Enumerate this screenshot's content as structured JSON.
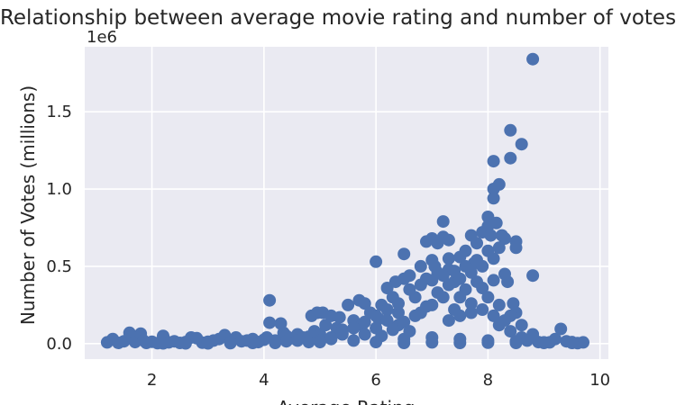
{
  "chart_data": {
    "type": "scatter",
    "title": "Relationship between average movie rating and number of votes",
    "xlabel": "Average Rating",
    "ylabel": "Number of Votes (millions)",
    "y_offset_label": "1e6",
    "xlim": [
      0.8,
      10.15
    ],
    "ylim": [
      -100000,
      1920000
    ],
    "x_ticks": [
      2,
      4,
      6,
      8,
      10
    ],
    "x_tick_labels": [
      "2",
      "4",
      "6",
      "8",
      "10"
    ],
    "y_ticks": [
      0,
      500000,
      1000000,
      1500000
    ],
    "y_tick_labels": [
      "0.0",
      "0.5",
      "1.0",
      "1.5"
    ],
    "grid": true,
    "series_color": "#4c72b0",
    "background": "#eaeaf2",
    "points": [
      [
        1.2,
        8000
      ],
      [
        1.3,
        30000
      ],
      [
        1.4,
        5000
      ],
      [
        1.5,
        15000
      ],
      [
        1.6,
        70000
      ],
      [
        1.65,
        40000
      ],
      [
        1.7,
        10000
      ],
      [
        1.8,
        65000
      ],
      [
        1.85,
        20000
      ],
      [
        1.9,
        5000
      ],
      [
        2.0,
        12000
      ],
      [
        2.1,
        3000
      ],
      [
        2.2,
        50000
      ],
      [
        2.3,
        8000
      ],
      [
        2.4,
        15000
      ],
      [
        2.5,
        5000
      ],
      [
        2.6,
        10000
      ],
      [
        2.7,
        40000
      ],
      [
        2.8,
        35000
      ],
      [
        2.9,
        6000
      ],
      [
        3.0,
        12000
      ],
      [
        3.1,
        20000
      ],
      [
        3.2,
        30000
      ],
      [
        3.3,
        55000
      ],
      [
        3.4,
        8000
      ],
      [
        3.5,
        40000
      ],
      [
        3.6,
        15000
      ],
      [
        3.7,
        20000
      ],
      [
        3.8,
        30000
      ],
      [
        3.9,
        10000
      ],
      [
        4.0,
        25000
      ],
      [
        4.05,
        40000
      ],
      [
        4.1,
        280000
      ],
      [
        4.1,
        135000
      ],
      [
        4.2,
        20000
      ],
      [
        4.3,
        130000
      ],
      [
        4.35,
        70000
      ],
      [
        4.4,
        50000
      ],
      [
        4.5,
        35000
      ],
      [
        4.6,
        60000
      ],
      [
        4.7,
        40000
      ],
      [
        4.8,
        45000
      ],
      [
        4.85,
        180000
      ],
      [
        4.9,
        80000
      ],
      [
        4.95,
        200000
      ],
      [
        5.0,
        60000
      ],
      [
        5.05,
        200000
      ],
      [
        5.1,
        120000
      ],
      [
        5.2,
        180000
      ],
      [
        5.3,
        100000
      ],
      [
        5.35,
        170000
      ],
      [
        5.4,
        60000
      ],
      [
        5.5,
        250000
      ],
      [
        5.6,
        150000
      ],
      [
        5.7,
        280000
      ],
      [
        5.75,
        120000
      ],
      [
        5.8,
        260000
      ],
      [
        5.9,
        200000
      ],
      [
        6.0,
        530000
      ],
      [
        6.05,
        160000
      ],
      [
        6.1,
        250000
      ],
      [
        6.2,
        360000
      ],
      [
        6.3,
        300000
      ],
      [
        6.35,
        400000
      ],
      [
        6.4,
        200000
      ],
      [
        6.5,
        580000
      ],
      [
        6.5,
        420000
      ],
      [
        6.6,
        440000
      ],
      [
        6.7,
        300000
      ],
      [
        6.8,
        500000
      ],
      [
        6.9,
        660000
      ],
      [
        7.0,
        680000
      ],
      [
        7.0,
        540000
      ],
      [
        7.05,
        500000
      ],
      [
        7.1,
        650000
      ],
      [
        7.2,
        790000
      ],
      [
        7.2,
        690000
      ],
      [
        7.3,
        670000
      ],
      [
        7.3,
        550000
      ],
      [
        7.4,
        400000
      ],
      [
        7.5,
        560000
      ],
      [
        7.6,
        600000
      ],
      [
        7.7,
        700000
      ],
      [
        7.75,
        520000
      ],
      [
        7.8,
        650000
      ],
      [
        7.9,
        720000
      ],
      [
        8.0,
        820000
      ],
      [
        8.0,
        760000
      ],
      [
        8.05,
        700000
      ],
      [
        8.1,
        1180000
      ],
      [
        8.1,
        1000000
      ],
      [
        8.1,
        940000
      ],
      [
        8.15,
        780000
      ],
      [
        8.2,
        1030000
      ],
      [
        8.25,
        700000
      ],
      [
        8.3,
        680000
      ],
      [
        8.35,
        400000
      ],
      [
        8.4,
        1380000
      ],
      [
        8.4,
        1200000
      ],
      [
        8.45,
        260000
      ],
      [
        8.5,
        660000
      ],
      [
        8.5,
        620000
      ],
      [
        8.5,
        200000
      ],
      [
        8.6,
        1290000
      ],
      [
        8.8,
        1840000
      ],
      [
        8.8,
        440000
      ],
      [
        8.9,
        10000
      ],
      [
        9.0,
        5000
      ],
      [
        9.1,
        8000
      ],
      [
        9.2,
        30000
      ],
      [
        9.3,
        95000
      ],
      [
        9.4,
        15000
      ],
      [
        9.5,
        5000
      ],
      [
        9.6,
        3000
      ],
      [
        9.7,
        8000
      ],
      [
        5.6,
        20000
      ],
      [
        5.8,
        60000
      ],
      [
        6.0,
        100000
      ],
      [
        6.2,
        150000
      ],
      [
        6.4,
        120000
      ],
      [
        6.6,
        80000
      ],
      [
        6.8,
        200000
      ],
      [
        7.0,
        250000
      ],
      [
        7.2,
        300000
      ],
      [
        7.4,
        220000
      ],
      [
        7.6,
        350000
      ],
      [
        7.8,
        400000
      ],
      [
        8.0,
        300000
      ],
      [
        8.2,
        250000
      ],
      [
        8.4,
        180000
      ],
      [
        8.6,
        120000
      ],
      [
        8.8,
        60000
      ],
      [
        6.1,
        50000
      ],
      [
        6.3,
        90000
      ],
      [
        6.5,
        140000
      ],
      [
        6.7,
        180000
      ],
      [
        6.9,
        240000
      ],
      [
        7.1,
        330000
      ],
      [
        7.3,
        380000
      ],
      [
        7.5,
        420000
      ],
      [
        7.7,
        460000
      ],
      [
        7.9,
        500000
      ],
      [
        8.1,
        550000
      ],
      [
        8.3,
        450000
      ],
      [
        6.9,
        420000
      ],
      [
        7.1,
        460000
      ],
      [
        7.3,
        480000
      ],
      [
        7.5,
        300000
      ],
      [
        7.7,
        260000
      ],
      [
        7.9,
        360000
      ],
      [
        8.1,
        410000
      ],
      [
        8.2,
        120000
      ],
      [
        8.4,
        80000
      ],
      [
        8.6,
        40000
      ],
      [
        8.7,
        20000
      ],
      [
        5.2,
        30000
      ],
      [
        5.4,
        90000
      ],
      [
        5.0,
        20000
      ],
      [
        4.8,
        10000
      ],
      [
        4.6,
        20000
      ],
      [
        4.4,
        15000
      ],
      [
        4.2,
        5000
      ],
      [
        3.8,
        5000
      ],
      [
        3.4,
        3000
      ],
      [
        3.0,
        2000
      ],
      [
        2.6,
        2000
      ],
      [
        2.2,
        2000
      ],
      [
        6.6,
        350000
      ],
      [
        6.8,
        380000
      ],
      [
        7.0,
        410000
      ],
      [
        7.2,
        440000
      ],
      [
        7.4,
        470000
      ],
      [
        7.6,
        500000
      ],
      [
        7.8,
        540000
      ],
      [
        8.0,
        600000
      ],
      [
        8.2,
        620000
      ],
      [
        6.4,
        260000
      ],
      [
        6.2,
        220000
      ],
      [
        6.0,
        180000
      ],
      [
        5.8,
        140000
      ],
      [
        5.6,
        100000
      ],
      [
        5.4,
        70000
      ],
      [
        5.2,
        40000
      ],
      [
        5.0,
        10000
      ],
      [
        7.3,
        150000
      ],
      [
        7.5,
        180000
      ],
      [
        7.7,
        200000
      ],
      [
        7.9,
        220000
      ],
      [
        8.1,
        180000
      ],
      [
        8.3,
        150000
      ],
      [
        6.5,
        30000
      ],
      [
        7.0,
        40000
      ],
      [
        7.5,
        30000
      ],
      [
        8.0,
        20000
      ],
      [
        8.5,
        15000
      ],
      [
        6.0,
        10000
      ],
      [
        6.5,
        5000
      ],
      [
        7.0,
        8000
      ],
      [
        7.5,
        5000
      ],
      [
        8.0,
        6000
      ],
      [
        8.5,
        5000
      ],
      [
        9.0,
        8000
      ],
      [
        9.5,
        10000
      ]
    ]
  }
}
